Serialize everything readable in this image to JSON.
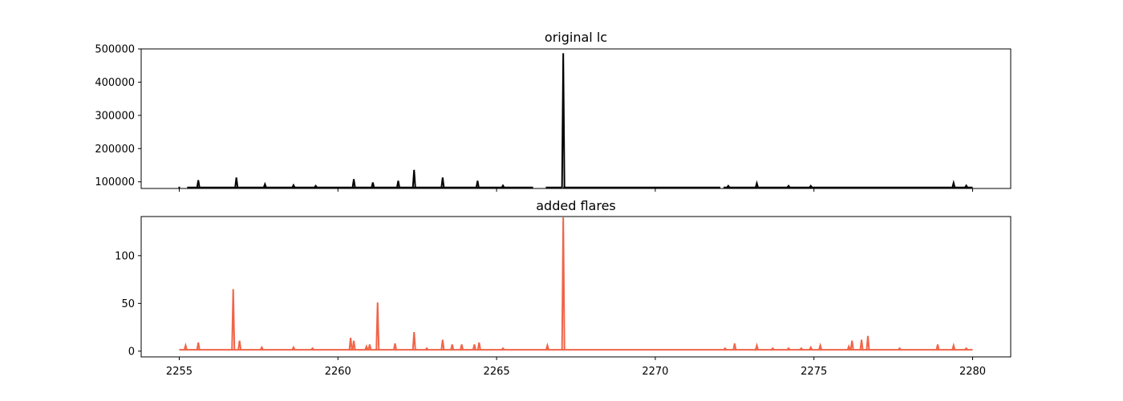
{
  "chart_data": [
    {
      "type": "line",
      "title": "original lc",
      "xlabel": "",
      "ylabel": "",
      "xlim": [
        2253.8,
        2281.2
      ],
      "ylim": [
        80000,
        500000
      ],
      "xticks": [
        2255,
        2260,
        2265,
        2270,
        2275,
        2280
      ],
      "xtick_labels_visible": false,
      "yticks": [
        100000,
        200000,
        300000,
        400000,
        500000
      ],
      "ytick_labels": [
        "100000",
        "200000",
        "300000",
        "400000",
        "500000"
      ],
      "color": "#000000",
      "baseline": 83000,
      "segments": [
        [
          2255.25,
          2266.15
        ],
        [
          2266.55,
          2267.08
        ],
        [
          2267.1,
          2272.05
        ],
        [
          2272.15,
          2280.0
        ]
      ],
      "isolated_points": [
        {
          "x": 2255.0,
          "y": 83000
        }
      ],
      "peaks": [
        {
          "x": 2255.6,
          "y": 105000
        },
        {
          "x": 2256.8,
          "y": 113000
        },
        {
          "x": 2257.7,
          "y": 93000
        },
        {
          "x": 2258.6,
          "y": 90000
        },
        {
          "x": 2259.3,
          "y": 88000
        },
        {
          "x": 2260.5,
          "y": 108000
        },
        {
          "x": 2261.1,
          "y": 98000
        },
        {
          "x": 2261.9,
          "y": 103000
        },
        {
          "x": 2262.4,
          "y": 136000
        },
        {
          "x": 2263.3,
          "y": 113000
        },
        {
          "x": 2264.4,
          "y": 103000
        },
        {
          "x": 2265.2,
          "y": 89000
        },
        {
          "x": 2267.1,
          "y": 487000
        },
        {
          "x": 2272.3,
          "y": 88000
        },
        {
          "x": 2273.2,
          "y": 96000
        },
        {
          "x": 2274.2,
          "y": 88000
        },
        {
          "x": 2274.9,
          "y": 88000
        },
        {
          "x": 2279.4,
          "y": 97000
        },
        {
          "x": 2279.8,
          "y": 89000
        }
      ]
    },
    {
      "type": "line",
      "title": "added flares",
      "xlabel": "",
      "ylabel": "",
      "xlim": [
        2253.8,
        2281.2
      ],
      "ylim": [
        -6,
        141
      ],
      "xticks": [
        2255,
        2260,
        2265,
        2270,
        2275,
        2280
      ],
      "xtick_labels": [
        "2255",
        "2260",
        "2265",
        "2270",
        "2275",
        "2280"
      ],
      "yticks": [
        0,
        50,
        100
      ],
      "ytick_labels": [
        "0",
        "50",
        "100"
      ],
      "color": "#f06448",
      "baseline": 1.5,
      "segments": [
        [
          2255.0,
          2280.0
        ]
      ],
      "isolated_points": [],
      "peaks": [
        {
          "x": 2255.2,
          "y": 6
        },
        {
          "x": 2255.6,
          "y": 9
        },
        {
          "x": 2256.7,
          "y": 65
        },
        {
          "x": 2256.9,
          "y": 11
        },
        {
          "x": 2257.6,
          "y": 4
        },
        {
          "x": 2258.6,
          "y": 4
        },
        {
          "x": 2259.2,
          "y": 3
        },
        {
          "x": 2260.4,
          "y": 14
        },
        {
          "x": 2260.5,
          "y": 11
        },
        {
          "x": 2260.9,
          "y": 5
        },
        {
          "x": 2261.0,
          "y": 7
        },
        {
          "x": 2261.25,
          "y": 51
        },
        {
          "x": 2261.8,
          "y": 8
        },
        {
          "x": 2262.4,
          "y": 20
        },
        {
          "x": 2262.8,
          "y": 3
        },
        {
          "x": 2263.3,
          "y": 12
        },
        {
          "x": 2263.6,
          "y": 7
        },
        {
          "x": 2263.9,
          "y": 7
        },
        {
          "x": 2264.3,
          "y": 7
        },
        {
          "x": 2264.45,
          "y": 9
        },
        {
          "x": 2265.2,
          "y": 3
        },
        {
          "x": 2266.6,
          "y": 6
        },
        {
          "x": 2267.1,
          "y": 140
        },
        {
          "x": 2272.2,
          "y": 3
        },
        {
          "x": 2272.5,
          "y": 8
        },
        {
          "x": 2273.2,
          "y": 6
        },
        {
          "x": 2273.7,
          "y": 3
        },
        {
          "x": 2274.2,
          "y": 3
        },
        {
          "x": 2274.6,
          "y": 3
        },
        {
          "x": 2274.9,
          "y": 4
        },
        {
          "x": 2275.2,
          "y": 6
        },
        {
          "x": 2276.1,
          "y": 5
        },
        {
          "x": 2276.2,
          "y": 11
        },
        {
          "x": 2276.5,
          "y": 12
        },
        {
          "x": 2276.7,
          "y": 16
        },
        {
          "x": 2277.7,
          "y": 3
        },
        {
          "x": 2278.9,
          "y": 7
        },
        {
          "x": 2279.4,
          "y": 6
        },
        {
          "x": 2279.8,
          "y": 3
        }
      ]
    }
  ]
}
